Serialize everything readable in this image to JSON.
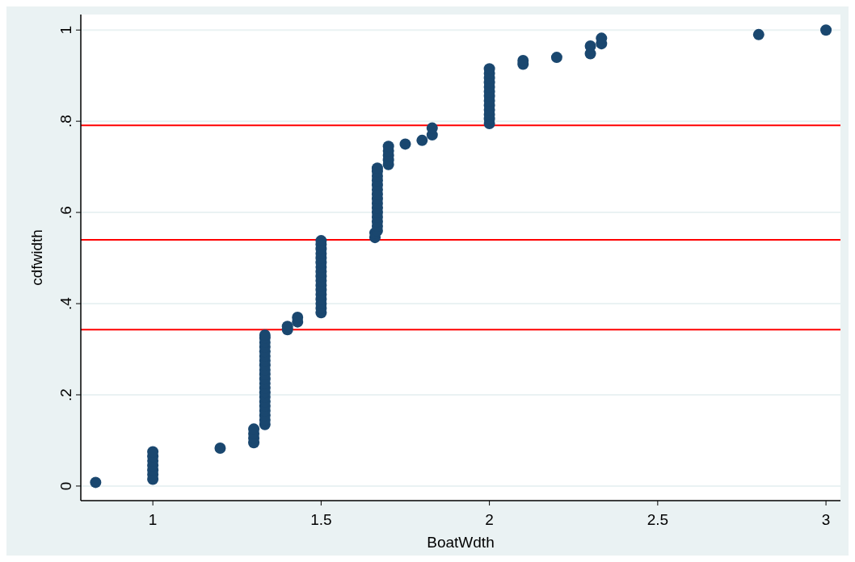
{
  "chart_data": {
    "type": "scatter",
    "xlabel": "BoatWdth",
    "ylabel": "cdfwidth",
    "marker": "circle",
    "grid": "y",
    "xlim": [
      0.786,
      3.043
    ],
    "ylim": [
      -0.032,
      1.034
    ],
    "xticks": [
      1,
      1.5,
      2,
      2.5,
      3
    ],
    "yticks": [
      0,
      {
        "value": 0.2,
        "label": ".2"
      },
      {
        "value": 0.4,
        "label": ".4"
      },
      {
        "value": 0.6,
        "label": ".6"
      },
      {
        "value": 0.8,
        "label": ".8"
      },
      1
    ],
    "ref_lines": [
      {
        "axis": "y",
        "value": 0.791,
        "color": "#ff0000"
      },
      {
        "axis": "y",
        "value": 0.54,
        "color": "#ff0000"
      },
      {
        "axis": "y",
        "value": 0.343,
        "color": "#ff0000"
      }
    ],
    "series": [
      {
        "color": "#1a476f",
        "x": [
          0.83,
          1,
          1,
          1,
          1,
          1,
          1,
          1,
          1.2,
          1.3,
          1.3,
          1.3,
          1.3,
          1.333,
          1.333,
          1.333,
          1.333,
          1.333,
          1.333,
          1.333,
          1.333,
          1.333,
          1.333,
          1.333,
          1.333,
          1.333,
          1.333,
          1.333,
          1.333,
          1.333,
          1.333,
          1.333,
          1.333,
          1.333,
          1.4,
          1.4,
          1.43,
          1.43,
          1.5,
          1.5,
          1.5,
          1.5,
          1.5,
          1.5,
          1.5,
          1.5,
          1.5,
          1.5,
          1.5,
          1.5,
          1.5,
          1.5,
          1.5,
          1.5,
          1.5,
          1.66,
          1.66,
          1.667,
          1.667,
          1.667,
          1.667,
          1.667,
          1.667,
          1.667,
          1.667,
          1.667,
          1.667,
          1.667,
          1.667,
          1.667,
          1.667,
          1.667,
          1.7,
          1.7,
          1.7,
          1.7,
          1.7,
          1.75,
          1.8,
          1.83,
          1.83,
          2,
          2,
          2,
          2,
          2,
          2,
          2,
          2,
          2,
          2,
          2,
          2,
          2,
          2.1,
          2.1,
          2.2,
          2.3,
          2.3,
          2.333,
          2.333,
          2.8,
          3
        ],
        "values": [
          0.008,
          0.015,
          0.025,
          0.035,
          0.045,
          0.055,
          0.065,
          0.075,
          0.083,
          0.095,
          0.105,
          0.115,
          0.125,
          0.135,
          0.145,
          0.155,
          0.165,
          0.175,
          0.185,
          0.195,
          0.205,
          0.215,
          0.225,
          0.235,
          0.245,
          0.255,
          0.265,
          0.275,
          0.285,
          0.295,
          0.305,
          0.315,
          0.325,
          0.331,
          0.343,
          0.35,
          0.36,
          0.37,
          0.38,
          0.39,
          0.4,
          0.41,
          0.42,
          0.43,
          0.44,
          0.45,
          0.46,
          0.47,
          0.48,
          0.49,
          0.5,
          0.51,
          0.52,
          0.53,
          0.538,
          0.545,
          0.555,
          0.56,
          0.57,
          0.58,
          0.59,
          0.6,
          0.61,
          0.62,
          0.63,
          0.64,
          0.65,
          0.66,
          0.67,
          0.68,
          0.69,
          0.697,
          0.705,
          0.715,
          0.725,
          0.735,
          0.745,
          0.75,
          0.758,
          0.77,
          0.785,
          0.795,
          0.805,
          0.815,
          0.825,
          0.835,
          0.845,
          0.855,
          0.865,
          0.875,
          0.885,
          0.895,
          0.905,
          0.915,
          0.925,
          0.933,
          0.94,
          0.948,
          0.965,
          0.97,
          0.982,
          0.99,
          1.0
        ]
      }
    ]
  }
}
